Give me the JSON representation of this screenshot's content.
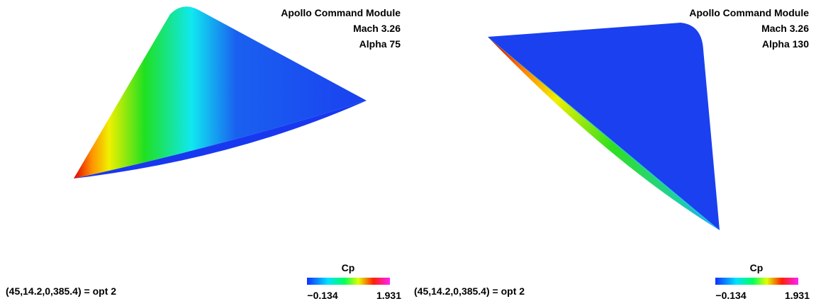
{
  "panels": [
    {
      "title_lines": [
        "Apollo Command Module",
        "Mach 3.26",
        "Alpha 75"
      ],
      "caption": "(45,14.2,0,385.4) = opt 2",
      "colorbar": {
        "label": "Cp",
        "min_label": "−0.134",
        "max_label": "1.931"
      }
    },
    {
      "title_lines": [
        "Apollo Command Module",
        "Mach 3.26",
        "Alpha 130"
      ],
      "caption": "(45,14.2,0,385.4) = opt 2",
      "colorbar": {
        "label": "Cp",
        "min_label": "−0.134",
        "max_label": "1.931"
      }
    }
  ]
}
